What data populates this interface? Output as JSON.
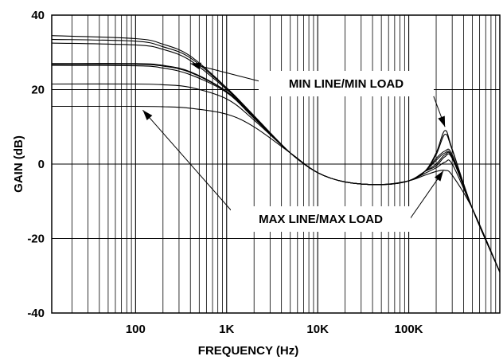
{
  "chart_data": {
    "type": "line",
    "xlabel": "FREQUENCY (Hz)",
    "ylabel": "GAIN (dB)",
    "xscale": "log",
    "xlim": [
      12,
      1000000
    ],
    "ylim": [
      -40,
      40
    ],
    "grid": true,
    "x_ticks": [
      {
        "value": 100,
        "label": "100"
      },
      {
        "value": 1000,
        "label": "1K"
      },
      {
        "value": 10000,
        "label": "10K"
      },
      {
        "value": 100000,
        "label": "100K"
      }
    ],
    "y_ticks": [
      {
        "value": 40,
        "label": "40"
      },
      {
        "value": 20,
        "label": "20"
      },
      {
        "value": 0,
        "label": "0"
      },
      {
        "value": -20,
        "label": "-20"
      },
      {
        "value": -40,
        "label": "-40"
      }
    ],
    "series": [
      {
        "x": [
          12,
          100,
          200,
          400,
          1000,
          2000,
          5000,
          10000,
          20000,
          50000,
          100000,
          150000,
          200000,
          250000,
          300000,
          500000,
          1000000
        ],
        "values": [
          34.5,
          33.7,
          32.2,
          29.0,
          20.5,
          13.0,
          3.0,
          -2.3,
          -4.8,
          -5.5,
          -4.5,
          -2.0,
          3.0,
          9.0,
          4.0,
          -12.0,
          -29.0
        ]
      },
      {
        "x": [
          12,
          100,
          200,
          400,
          1000,
          2000,
          5000,
          10000,
          20000,
          50000,
          100000,
          150000,
          200000,
          250000,
          300000,
          500000,
          1000000
        ],
        "values": [
          33.5,
          33.0,
          31.5,
          28.5,
          20.3,
          12.9,
          3.0,
          -2.3,
          -4.8,
          -5.5,
          -4.5,
          -2.0,
          2.5,
          8.0,
          3.8,
          -12.0,
          -29.0
        ]
      },
      {
        "x": [
          12,
          100,
          200,
          400,
          1000,
          2000,
          5000,
          10000,
          20000,
          50000,
          100000,
          150000,
          200000,
          250000,
          300000,
          500000,
          1000000
        ],
        "values": [
          32.5,
          32.0,
          30.8,
          27.8,
          20.0,
          12.8,
          3.0,
          -2.3,
          -4.8,
          -5.5,
          -4.5,
          -2.0,
          1.5,
          3.5,
          2.5,
          -12.0,
          -29.0
        ]
      },
      {
        "x": [
          12,
          100,
          200,
          400,
          1000,
          2000,
          5000,
          10000,
          20000,
          50000,
          100000,
          150000,
          200000,
          250000,
          300000,
          500000,
          1000000
        ],
        "values": [
          27.0,
          27.0,
          26.5,
          24.8,
          19.5,
          12.5,
          3.0,
          -2.3,
          -4.8,
          -5.5,
          -4.5,
          -2.0,
          1.0,
          3.0,
          2.0,
          -12.0,
          -29.0
        ]
      },
      {
        "x": [
          12,
          100,
          200,
          400,
          1000,
          2000,
          5000,
          10000,
          20000,
          50000,
          100000,
          150000,
          200000,
          250000,
          300000,
          500000,
          1000000
        ],
        "values": [
          26.8,
          26.8,
          26.3,
          24.6,
          19.4,
          12.4,
          3.0,
          -2.3,
          -4.8,
          -5.5,
          -4.5,
          -2.0,
          0.0,
          2.5,
          1.8,
          -12.0,
          -29.0
        ]
      },
      {
        "x": [
          12,
          100,
          200,
          400,
          1000,
          2000,
          5000,
          10000,
          20000,
          50000,
          100000,
          150000,
          200000,
          250000,
          300000,
          500000,
          1000000
        ],
        "values": [
          26.5,
          26.4,
          25.8,
          24.0,
          19.2,
          12.3,
          3.0,
          -2.3,
          -4.8,
          -5.5,
          -4.5,
          -2.0,
          -0.5,
          2.0,
          1.5,
          -12.0,
          -29.0
        ]
      },
      {
        "x": [
          12,
          100,
          200,
          400,
          1000,
          2000,
          5000,
          10000,
          20000,
          50000,
          100000,
          150000,
          200000,
          250000,
          300000,
          500000,
          1000000
        ],
        "values": [
          21.5,
          21.5,
          21.3,
          20.6,
          17.5,
          11.8,
          3.0,
          -2.3,
          -4.8,
          -5.5,
          -4.5,
          -2.5,
          -1.0,
          0.5,
          0.0,
          -12.0,
          -29.0
        ]
      },
      {
        "x": [
          12,
          100,
          200,
          400,
          1000,
          2000,
          5000,
          10000,
          20000,
          50000,
          100000,
          150000,
          200000,
          250000,
          300000,
          500000,
          1000000
        ],
        "values": [
          15.5,
          15.5,
          15.4,
          15.0,
          13.4,
          10.0,
          3.0,
          -2.3,
          -4.8,
          -5.5,
          -4.5,
          -3.0,
          -2.0,
          -1.7,
          -3.0,
          -12.0,
          -29.0
        ]
      }
    ],
    "annotations": [
      {
        "text": "MIN LINE/MIN LOAD",
        "arrows": [
          {
            "x": 400,
            "y": 27.0
          },
          {
            "x": 250000,
            "y": 10.0
          }
        ]
      },
      {
        "text": "MAX LINE/MAX LOAD",
        "arrows": [
          {
            "x": 120,
            "y": 14.5
          },
          {
            "x": 240000,
            "y": -1.8
          }
        ]
      }
    ]
  }
}
